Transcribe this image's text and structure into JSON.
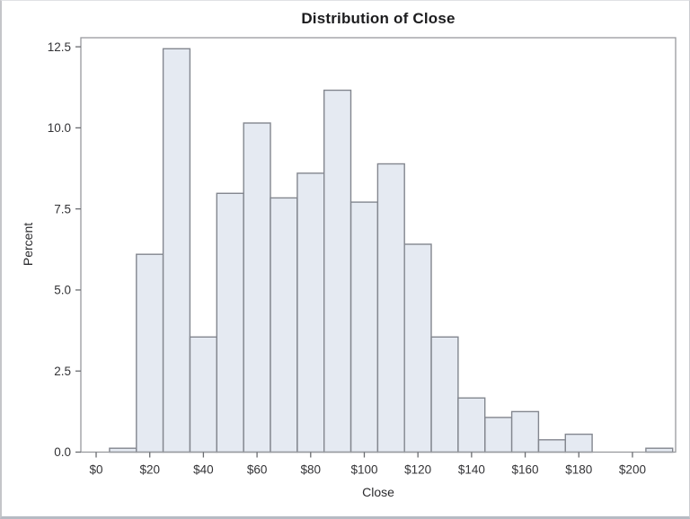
{
  "page": {
    "background": "#ffffff",
    "border_color": "#c4c5c9"
  },
  "chart_data": {
    "type": "bar",
    "subtype": "histogram",
    "title": "Distribution of Close",
    "xlabel": "Close",
    "ylabel": "Percent",
    "bin_width": 10,
    "bin_midpoints": [
      10,
      20,
      30,
      40,
      50,
      60,
      70,
      80,
      90,
      100,
      110,
      120,
      130,
      140,
      150,
      160,
      170,
      180,
      190,
      200,
      210
    ],
    "values": [
      0.12,
      6.1,
      12.44,
      3.55,
      7.98,
      10.15,
      7.84,
      8.6,
      11.16,
      7.71,
      8.89,
      6.41,
      3.55,
      1.67,
      1.07,
      1.25,
      0.38,
      0.55,
      0,
      0,
      0.12
    ],
    "x_tick_values": [
      0,
      20,
      40,
      60,
      80,
      100,
      120,
      140,
      160,
      180,
      200
    ],
    "x_tick_labels": [
      "$0",
      "$20",
      "$40",
      "$60",
      "$80",
      "$100",
      "$120",
      "$140",
      "$160",
      "$180",
      "$200"
    ],
    "y_tick_values": [
      0,
      2.5,
      5,
      7.5,
      10,
      12.5
    ],
    "y_tick_labels": [
      "0.0",
      "2.5",
      "5.0",
      "7.5",
      "10.0",
      "12.5"
    ],
    "xlim": [
      -5.7,
      216.1
    ],
    "ylim": [
      0,
      12.78
    ],
    "grid": false,
    "legend": "none",
    "colors": {
      "bar_fill": "#e5eaf2",
      "bar_stroke": "#83878f",
      "frame": "#97999e",
      "tick": "#6a6c70",
      "tick_text": "#333336",
      "title_text": "#1c1c1e",
      "axis_label_text": "#2b2b2e"
    }
  }
}
